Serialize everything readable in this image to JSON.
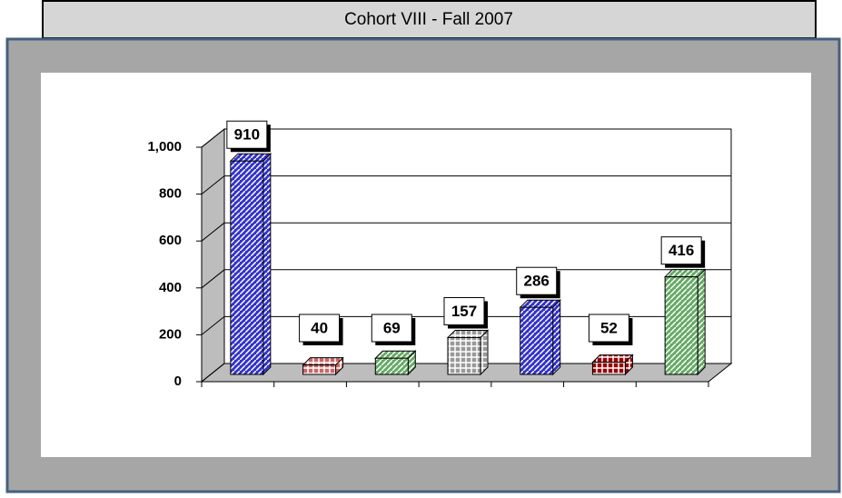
{
  "chart_data": {
    "type": "bar3d",
    "title": "Cohort VIII - Fall 2007",
    "categories": [
      null,
      null,
      null,
      null,
      null,
      null,
      null
    ],
    "series": [
      {
        "values": [
          910,
          40,
          69,
          157,
          286,
          52,
          416
        ],
        "colors": [
          "#3333cc",
          "#cc6666",
          "#66aa66",
          "#999999",
          "#3333cc",
          "#990000",
          "#66aa66"
        ]
      }
    ],
    "ylim": [
      0,
      1000
    ],
    "yticks": [
      0,
      200,
      400,
      600,
      800,
      {
        "value": 1000,
        "label": "1,000"
      }
    ],
    "grid": true
  }
}
